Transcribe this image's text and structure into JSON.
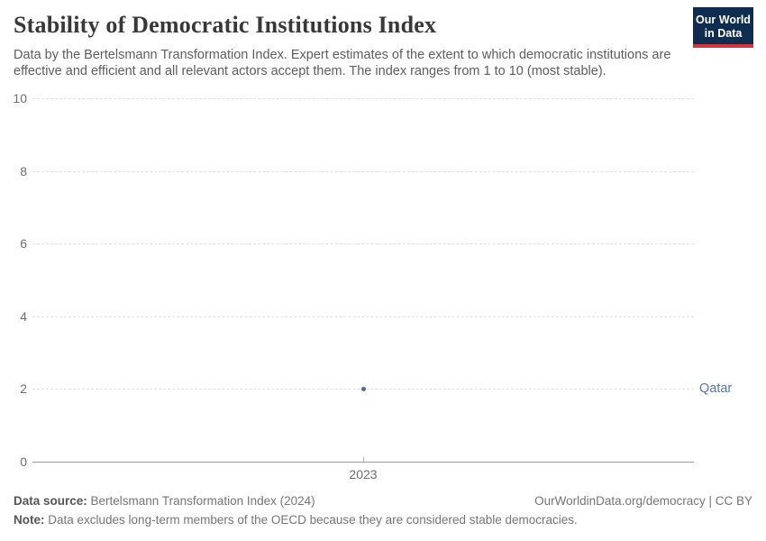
{
  "header": {
    "title": "Stability of Democratic Institutions Index",
    "subtitle": "Data by the Bertelsmann Transformation Index. Expert estimates of the extent to which democratic institutions are effective and efficient and all relevant actors accept them. The index ranges from 1 to 10 (most stable).",
    "logo_line1": "Our World",
    "logo_line2": "in Data",
    "logo_bg": "#102d50",
    "logo_accent": "#d2353f"
  },
  "chart_data": {
    "type": "scatter",
    "title": "Stability of Democratic Institutions Index",
    "x": [
      2023
    ],
    "series": [
      {
        "name": "Qatar",
        "values": [
          2
        ]
      }
    ],
    "xlabel": "",
    "ylabel": "",
    "ylim": [
      0,
      10
    ],
    "yticks": [
      0,
      2,
      4,
      6,
      8,
      10
    ],
    "xticks": [
      "2023"
    ],
    "grid": "horizontal-dashed",
    "legend_position": "entity-label-right",
    "point_color": "#4c6a9c",
    "entity_label_color": "#5077ad"
  },
  "footer": {
    "data_source_label": "Data source:",
    "data_source_value": " Bertelsmann Transformation Index (2024)",
    "attribution": "OurWorldinData.org/democracy | CC BY",
    "note_label": "Note:",
    "note_value": " Data excludes long-term members of the OECD because they are considered stable democracies."
  }
}
